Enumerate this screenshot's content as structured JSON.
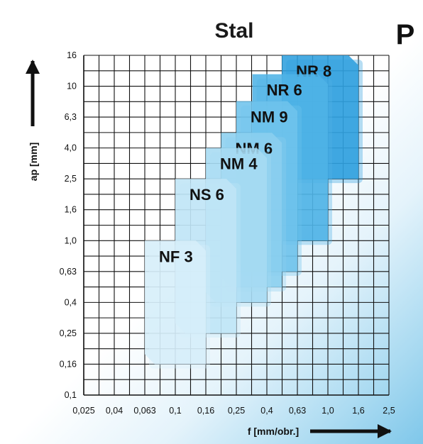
{
  "chart_data": {
    "type": "area",
    "title": "Stal",
    "tag": "P",
    "xlabel": "f [mm/obr.]",
    "ylabel": "ap [mm]",
    "x_ticks": [
      "0,025",
      "0,04",
      "0,063",
      "0,1",
      "0,16",
      "0,25",
      "0,4",
      "0,63",
      "1,0",
      "1,6",
      "2,5"
    ],
    "y_ticks": [
      "0,1",
      "0,16",
      "0,25",
      "0,4",
      "0,63",
      "1,0",
      "1,6",
      "2,5",
      "4,0",
      "6,3",
      "10",
      "16"
    ],
    "regions": [
      {
        "name": "NF 3",
        "f_min": 0.063,
        "f_max": 0.16,
        "ap_min": 0.16,
        "ap_max": 1.0,
        "color": "#d6eef9"
      },
      {
        "name": "NS 6",
        "f_min": 0.1,
        "f_max": 0.25,
        "ap_min": 0.25,
        "ap_max": 2.5,
        "color": "#bfe5f6"
      },
      {
        "name": "NM 4",
        "f_min": 0.16,
        "f_max": 0.4,
        "ap_min": 0.4,
        "ap_max": 4.0,
        "color": "#a6dbf2"
      },
      {
        "name": "NM 6",
        "f_min": 0.2,
        "f_max": 0.5,
        "ap_min": 0.5,
        "ap_max": 5.0,
        "color": "#8bcfef"
      },
      {
        "name": "NM 9",
        "f_min": 0.25,
        "f_max": 0.63,
        "ap_min": 0.63,
        "ap_max": 8.0,
        "color": "#6ec3ec"
      },
      {
        "name": "NR 6",
        "f_min": 0.32,
        "f_max": 1.0,
        "ap_min": 1.0,
        "ap_max": 12.0,
        "color": "#4fb3e6"
      },
      {
        "name": "NR 8",
        "f_min": 0.5,
        "f_max": 1.6,
        "ap_min": 2.5,
        "ap_max": 16.0,
        "color": "#2f9fde"
      }
    ]
  }
}
